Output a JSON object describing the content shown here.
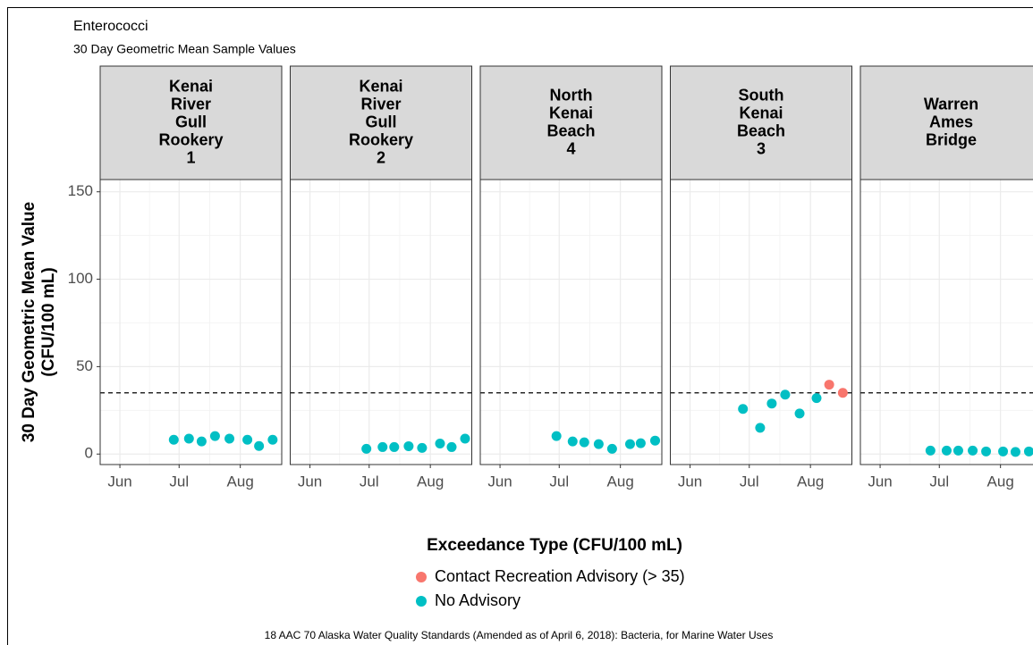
{
  "chart_data": {
    "type": "scatter",
    "title": "Enterococci",
    "subtitle": "30 Day Geometric Mean Sample Values",
    "ylabel": [
      "30 Day Geometric Mean Value",
      "(CFU/100 mL)"
    ],
    "legend_title": "Exceedance Type (CFU/100 mL)",
    "caption": "18 AAC 70 Alaska Water Quality Standards (Amended as of April 6, 2018): Bacteria, for Marine Water Uses",
    "legend_names": [
      "Contact Recreation Advisory (> 35)",
      "No Advisory"
    ],
    "legend_colors": [
      "#f8766d",
      "#00bfc4"
    ],
    "threshold": 35,
    "grid": true,
    "ylim": [
      -6,
      157
    ],
    "yticks": [
      0,
      50,
      100,
      150
    ],
    "xlim": [
      142,
      234
    ],
    "xticks": [
      {
        "value": 152,
        "label": "Jun"
      },
      {
        "value": 182,
        "label": "Jul"
      },
      {
        "value": 213,
        "label": "Aug"
      }
    ],
    "panels": [
      {
        "title": [
          "Kenai",
          "River",
          "Gull",
          "Rookery",
          "1"
        ],
        "series": [
          {
            "name": "No Advisory",
            "color": "#00bfc4",
            "x": [
              179.3,
              187,
              193.4,
              200.2,
              207.5,
              216.6,
              222.5,
              229.4
            ],
            "values": [
              8.2,
              8.8,
              7.2,
              10.3,
              8.8,
              8.2,
              4.6,
              8.2
            ]
          }
        ]
      },
      {
        "title": [
          "Kenai",
          "River",
          "Gull",
          "Rookery",
          "2"
        ],
        "series": [
          {
            "name": "No Advisory",
            "color": "#00bfc4",
            "x": [
              180.6,
              188.8,
              194.7,
              202,
              208.8,
              217.9,
              223.8,
              230.6
            ],
            "values": [
              3,
              4,
              4,
              4.5,
              3.5,
              6,
              4,
              8.8
            ]
          }
        ]
      },
      {
        "title": [
          "North",
          "Kenai",
          "Beach",
          "4"
        ],
        "series": [
          {
            "name": "No Advisory",
            "color": "#00bfc4",
            "x": [
              180.6,
              188.8,
              194.7,
              202,
              208.8,
              217.9,
              223.3,
              230.6
            ],
            "values": [
              10.3,
              7.2,
              6.7,
              5.7,
              3,
              5.7,
              6.2,
              7.7
            ]
          }
        ]
      },
      {
        "title": [
          "South",
          "Kenai",
          "Beach",
          "3"
        ],
        "series": [
          {
            "name": "No Advisory",
            "color": "#00bfc4",
            "x": [
              178.8,
              187.5,
              193.4,
              200.2,
              207.5,
              216.1
            ],
            "values": [
              25.8,
              15,
              28.9,
              34,
              23.2,
              32
            ]
          },
          {
            "name": "Contact Recreation Advisory (> 35)",
            "color": "#f8766d",
            "x": [
              222.5,
              229.4
            ],
            "values": [
              39.7,
              35
            ]
          }
        ]
      },
      {
        "title": [
          "Warren",
          "Ames",
          "Bridge"
        ],
        "series": [
          {
            "name": "No Advisory",
            "color": "#00bfc4",
            "x": [
              177.5,
              185.7,
              191.6,
              198.9,
              205.7,
              214.3,
              220.6,
              227.4
            ],
            "values": [
              2,
              2,
              2,
              2,
              1.5,
              1.5,
              1.2,
              1.5
            ]
          }
        ]
      }
    ]
  }
}
